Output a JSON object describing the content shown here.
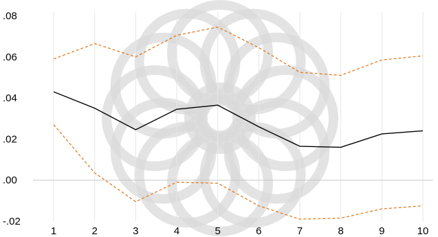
{
  "chart_data": {
    "type": "line",
    "x": [
      1,
      2,
      3,
      4,
      5,
      6,
      7,
      8,
      9,
      10
    ],
    "ylim": [
      -0.02,
      0.08
    ],
    "yticks": [
      -0.02,
      0.0,
      0.02,
      0.04,
      0.06,
      0.08
    ],
    "ytick_labels": [
      "-.02",
      ".00",
      ".02",
      ".04",
      ".06",
      ".08"
    ],
    "xtick_labels": [
      "1",
      "2",
      "3",
      "4",
      "5",
      "6",
      "7",
      "8",
      "9",
      "10"
    ],
    "grid": "vertical",
    "series": [
      {
        "values": [
          0.043,
          0.035,
          0.0245,
          0.0345,
          0.0365,
          0.026,
          0.0165,
          0.016,
          0.0225,
          0.024
        ],
        "color": "#000000",
        "style": "solid"
      },
      {
        "values": [
          0.059,
          0.0665,
          0.06,
          0.0705,
          0.0745,
          0.0645,
          0.0525,
          0.051,
          0.0585,
          0.0605
        ],
        "color": "#e07b22",
        "style": "dashed"
      },
      {
        "values": [
          0.027,
          0.0035,
          -0.0105,
          -0.001,
          -0.0015,
          -0.0125,
          -0.019,
          -0.0185,
          -0.014,
          -0.0125
        ],
        "color": "#e07b22",
        "style": "dashed"
      }
    ]
  }
}
